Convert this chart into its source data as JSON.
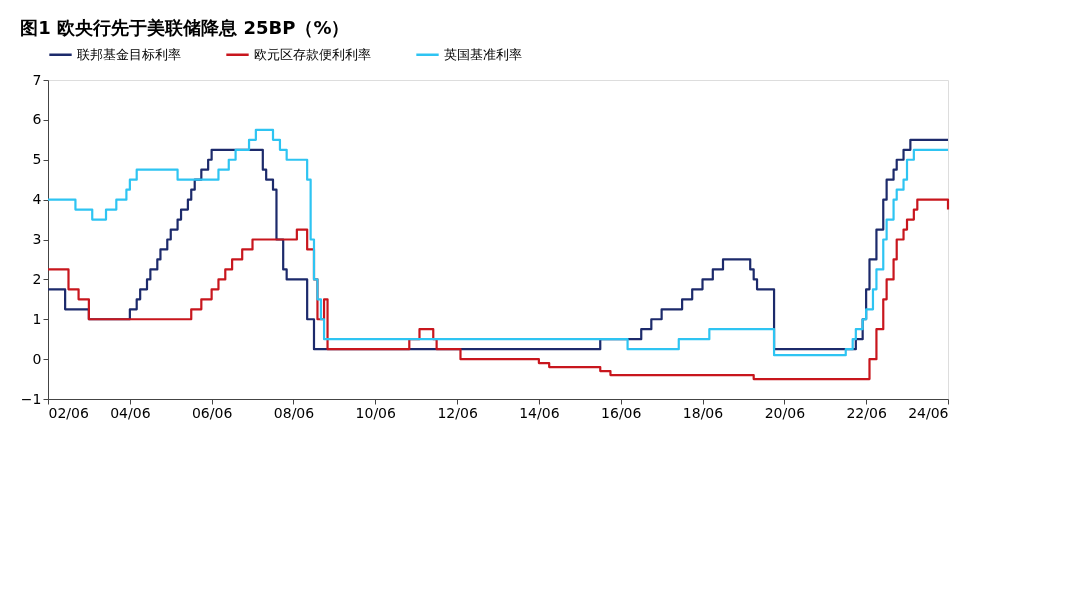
{
  "chart_data": {
    "type": "step",
    "title": "图1  欧央行先于美联储降息 25BP（%）",
    "x": [
      "2002-06",
      "2002-11",
      "2003-06",
      "2004-06",
      "2004-08",
      "2004-09",
      "2004-11",
      "2004-12",
      "2005-02",
      "2005-03",
      "2005-05",
      "2005-06",
      "2005-08",
      "2005-09",
      "2005-11",
      "2005-12",
      "2006-01",
      "2006-03",
      "2006-05",
      "2006-06",
      "2007-09",
      "2007-10",
      "2007-12",
      "2008-01",
      "2008-03",
      "2008-04",
      "2008-10",
      "2008-12",
      "2015-12",
      "2016-12",
      "2017-03",
      "2017-06",
      "2017-12",
      "2018-03",
      "2018-06",
      "2018-09",
      "2018-12",
      "2019-08",
      "2019-09",
      "2019-10",
      "2020-03",
      "2022-03",
      "2022-05",
      "2022-06",
      "2022-07",
      "2022-09",
      "2022-11",
      "2022-12",
      "2023-02",
      "2023-03",
      "2023-05",
      "2023-07",
      "2024-06"
    ],
    "series": [
      {
        "name": "联邦基金目标利率",
        "color": "#1c2a6b",
        "values": [
          1.75,
          1.25,
          1.0,
          1.25,
          1.5,
          1.75,
          2.0,
          2.25,
          2.5,
          2.75,
          3.0,
          3.25,
          3.5,
          3.75,
          4.0,
          4.25,
          4.5,
          4.75,
          5.0,
          5.25,
          4.75,
          4.5,
          4.25,
          3.0,
          2.25,
          2.0,
          1.0,
          0.25,
          0.5,
          0.75,
          1.0,
          1.25,
          1.5,
          1.75,
          2.0,
          2.25,
          2.5,
          2.25,
          2.0,
          1.75,
          0.25,
          0.5,
          1.0,
          1.75,
          2.5,
          3.25,
          4.0,
          4.5,
          4.75,
          5.0,
          5.25,
          5.5,
          5.5
        ]
      },
      {
        "name": "欧元区存款便利利率",
        "color": "#c8161d",
        "x": [
          "2002-06",
          "2002-12",
          "2003-03",
          "2003-06",
          "2005-12",
          "2006-03",
          "2006-06",
          "2006-08",
          "2006-10",
          "2006-12",
          "2007-03",
          "2007-06",
          "2008-07",
          "2008-10",
          "2008-11",
          "2008-12",
          "2009-01",
          "2009-03",
          "2009-04",
          "2011-04",
          "2011-07",
          "2011-11",
          "2011-12",
          "2012-07",
          "2014-06",
          "2014-09",
          "2015-12",
          "2016-03",
          "2019-09",
          "2022-07",
          "2022-09",
          "2022-11",
          "2022-12",
          "2023-02",
          "2023-03",
          "2023-05",
          "2023-06",
          "2023-08",
          "2023-09",
          "2024-06"
        ],
        "values": [
          2.25,
          1.75,
          1.5,
          1.0,
          1.25,
          1.5,
          1.75,
          2.0,
          2.25,
          2.5,
          2.75,
          3.0,
          3.25,
          2.75,
          2.75,
          2.0,
          1.0,
          1.5,
          0.25,
          0.5,
          0.75,
          0.5,
          0.25,
          0.0,
          -0.1,
          -0.2,
          -0.3,
          -0.4,
          -0.5,
          0.0,
          0.75,
          1.5,
          2.0,
          2.5,
          3.0,
          3.25,
          3.5,
          3.75,
          4.0,
          3.75
        ]
      },
      {
        "name": "英国基准利率",
        "color": "#2ec4f2",
        "x": [
          "2002-06",
          "2003-02",
          "2003-07",
          "2003-11",
          "2004-02",
          "2004-05",
          "2004-06",
          "2004-08",
          "2005-08",
          "2006-08",
          "2006-11",
          "2007-01",
          "2007-05",
          "2007-07",
          "2007-12",
          "2008-02",
          "2008-04",
          "2008-10",
          "2008-11",
          "2008-12",
          "2009-01",
          "2009-02",
          "2009-03",
          "2016-08",
          "2017-11",
          "2018-08",
          "2020-03",
          "2021-12",
          "2022-02",
          "2022-03",
          "2022-05",
          "2022-06",
          "2022-08",
          "2022-09",
          "2022-11",
          "2022-12",
          "2023-02",
          "2023-03",
          "2023-05",
          "2023-06",
          "2023-08",
          "2024-06"
        ],
        "values": [
          4.0,
          3.75,
          3.5,
          3.75,
          4.0,
          4.25,
          4.5,
          4.75,
          4.5,
          4.75,
          5.0,
          5.25,
          5.5,
          5.75,
          5.5,
          5.25,
          5.0,
          4.5,
          3.0,
          2.0,
          1.5,
          1.0,
          0.5,
          0.25,
          0.5,
          0.75,
          0.1,
          0.25,
          0.5,
          0.75,
          1.0,
          1.25,
          1.75,
          2.25,
          3.0,
          3.5,
          4.0,
          4.25,
          4.5,
          5.0,
          5.25,
          5.25
        ]
      }
    ],
    "xlim": [
      "2002-06",
      "2024-06"
    ],
    "xticks": [
      {
        "value": "2002-06",
        "label": "02/06"
      },
      {
        "value": "2004-06",
        "label": "04/06"
      },
      {
        "value": "2006-06",
        "label": "06/06"
      },
      {
        "value": "2008-06",
        "label": "08/06"
      },
      {
        "value": "2010-06",
        "label": "10/06"
      },
      {
        "value": "2012-06",
        "label": "12/06"
      },
      {
        "value": "2014-06",
        "label": "14/06"
      },
      {
        "value": "2016-06",
        "label": "16/06"
      },
      {
        "value": "2018-06",
        "label": "18/06"
      },
      {
        "value": "2020-06",
        "label": "20/06"
      },
      {
        "value": "2022-06",
        "label": "22/06"
      },
      {
        "value": "2024-06",
        "label": "24/06"
      }
    ],
    "ylim": [
      -1,
      7
    ],
    "yticks": [
      -1,
      0,
      1,
      2,
      3,
      4,
      5,
      6,
      7
    ],
    "grid": false,
    "legend": "top",
    "line_style": "solid",
    "marker": "none"
  }
}
